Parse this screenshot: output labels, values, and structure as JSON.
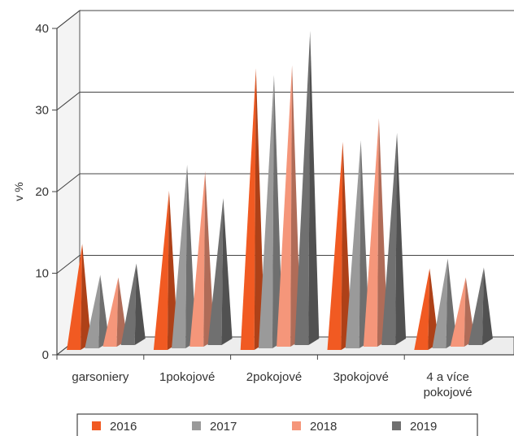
{
  "chart_data": {
    "type": "bar",
    "style": "3d-pyramid",
    "title": "",
    "xlabel": "",
    "ylabel": "v %",
    "ylim": [
      0,
      40
    ],
    "yticks": [
      0,
      10,
      20,
      30,
      40
    ],
    "grid": true,
    "legend_position": "bottom",
    "categories": [
      [
        "garsoniery"
      ],
      [
        "1pokojové"
      ],
      [
        "2pokojové"
      ],
      [
        "3pokojové"
      ],
      [
        "4 a více",
        "pokojové"
      ]
    ],
    "series": [
      {
        "name": "2016",
        "color": "#f15a22",
        "values": [
          13,
          19.5,
          34.5,
          25.5,
          10
        ]
      },
      {
        "name": "2017",
        "color": "#9a9a9a",
        "values": [
          9,
          22.5,
          33.5,
          25.5,
          11
        ]
      },
      {
        "name": "2018",
        "color": "#f5967a",
        "values": [
          8.5,
          21.5,
          34.5,
          28,
          8.5
        ]
      },
      {
        "name": "2019",
        "color": "#707070",
        "values": [
          10,
          18,
          38.5,
          26,
          9.5
        ]
      }
    ]
  }
}
